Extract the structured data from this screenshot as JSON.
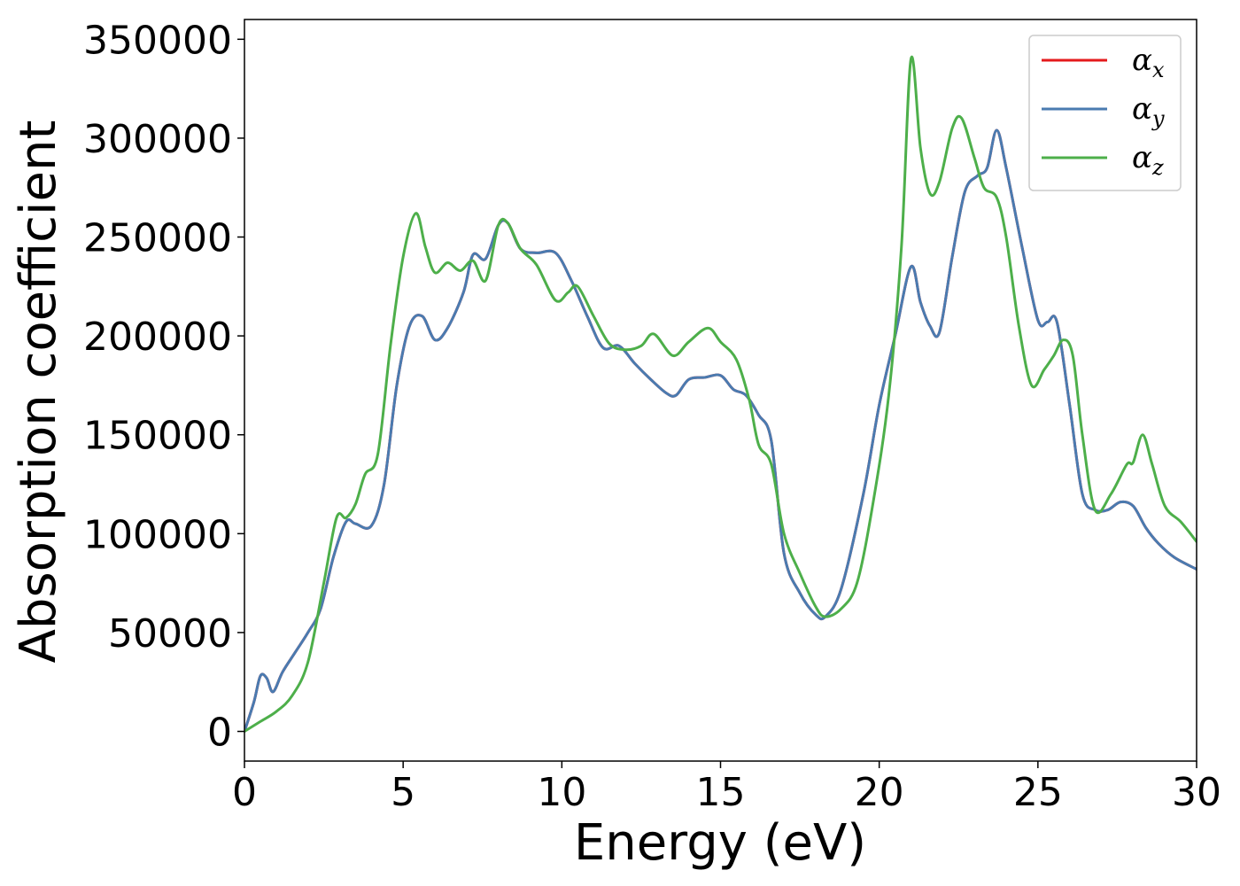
{
  "chart_data": {
    "type": "line",
    "title": "",
    "xlabel": "Energy (eV)",
    "ylabel": "Absorption coefficient",
    "xlim": [
      0,
      30
    ],
    "ylim": [
      -15000,
      360000
    ],
    "xticks": [
      0,
      5,
      10,
      15,
      20,
      25,
      30
    ],
    "yticks": [
      0,
      50000,
      100000,
      150000,
      200000,
      250000,
      300000,
      350000
    ],
    "grid": false,
    "legend_position": "top-right",
    "series": [
      {
        "name": "αx",
        "symbol": "α",
        "subscript": "x",
        "color": "#e41a1c",
        "x": [
          0,
          0.3,
          0.5,
          0.7,
          0.9,
          1.2,
          1.6,
          2.0,
          2.4,
          2.8,
          3.2,
          3.5,
          4.0,
          4.4,
          4.8,
          5.2,
          5.6,
          6.0,
          6.4,
          6.9,
          7.2,
          7.6,
          8.0,
          8.3,
          8.7,
          9.2,
          9.8,
          10.3,
          10.8,
          11.3,
          11.8,
          12.3,
          12.8,
          13.3,
          13.6,
          14.0,
          14.5,
          15.0,
          15.4,
          15.8,
          16.2,
          16.6,
          17.0,
          17.5,
          18.0,
          18.3,
          18.8,
          19.5,
          20.0,
          20.5,
          21.0,
          21.3,
          21.6,
          21.9,
          22.3,
          22.7,
          23.1,
          23.4,
          23.7,
          24.0,
          24.5,
          25.0,
          25.3,
          25.6,
          26.0,
          26.4,
          26.8,
          27.2,
          27.6,
          28.0,
          28.4,
          28.8,
          29.3,
          30.0
        ],
        "values": [
          0,
          15000,
          28000,
          27000,
          20000,
          30000,
          40000,
          50000,
          62000,
          88000,
          106000,
          105000,
          104000,
          125000,
          175000,
          205000,
          210000,
          198000,
          204000,
          222000,
          241000,
          239000,
          256000,
          257000,
          244000,
          242000,
          242000,
          228000,
          210000,
          194000,
          195000,
          186000,
          178000,
          171000,
          170000,
          178000,
          179000,
          180000,
          173000,
          170000,
          160000,
          147000,
          90000,
          70000,
          59000,
          58000,
          72000,
          120000,
          165000,
          200000,
          235000,
          217000,
          205000,
          202000,
          240000,
          273000,
          281000,
          285000,
          304000,
          285000,
          245000,
          208000,
          207000,
          207000,
          165000,
          120000,
          112000,
          112000,
          116000,
          114000,
          103000,
          95000,
          88000,
          82000
        ]
      },
      {
        "name": "αy",
        "symbol": "α",
        "subscript": "y",
        "color": "#4a7bb0",
        "x": [
          0,
          0.3,
          0.5,
          0.7,
          0.9,
          1.2,
          1.6,
          2.0,
          2.4,
          2.8,
          3.2,
          3.5,
          4.0,
          4.4,
          4.8,
          5.2,
          5.6,
          6.0,
          6.4,
          6.9,
          7.2,
          7.6,
          8.0,
          8.3,
          8.7,
          9.2,
          9.8,
          10.3,
          10.8,
          11.3,
          11.8,
          12.3,
          12.8,
          13.3,
          13.6,
          14.0,
          14.5,
          15.0,
          15.4,
          15.8,
          16.2,
          16.6,
          17.0,
          17.5,
          18.0,
          18.3,
          18.8,
          19.5,
          20.0,
          20.5,
          21.0,
          21.3,
          21.6,
          21.9,
          22.3,
          22.7,
          23.1,
          23.4,
          23.7,
          24.0,
          24.5,
          25.0,
          25.3,
          25.6,
          26.0,
          26.4,
          26.8,
          27.2,
          27.6,
          28.0,
          28.4,
          28.8,
          29.3,
          30.0
        ],
        "values": [
          0,
          15000,
          28000,
          27000,
          20000,
          30000,
          40000,
          50000,
          62000,
          88000,
          106000,
          105000,
          104000,
          125000,
          175000,
          205000,
          210000,
          198000,
          204000,
          222000,
          241000,
          239000,
          256000,
          257000,
          244000,
          242000,
          242000,
          228000,
          210000,
          194000,
          195000,
          186000,
          178000,
          171000,
          170000,
          178000,
          179000,
          180000,
          173000,
          170000,
          160000,
          147000,
          90000,
          70000,
          59000,
          58000,
          72000,
          120000,
          165000,
          200000,
          235000,
          217000,
          205000,
          202000,
          240000,
          273000,
          281000,
          285000,
          304000,
          285000,
          245000,
          208000,
          207000,
          207000,
          165000,
          120000,
          112000,
          112000,
          116000,
          114000,
          103000,
          95000,
          88000,
          82000
        ]
      },
      {
        "name": "αz",
        "symbol": "α",
        "subscript": "z",
        "color": "#4daf4a",
        "x": [
          0,
          0.5,
          1.0,
          1.5,
          2.0,
          2.5,
          2.9,
          3.2,
          3.5,
          3.8,
          4.2,
          4.6,
          5.0,
          5.4,
          5.7,
          6.0,
          6.4,
          6.8,
          7.2,
          7.6,
          8.0,
          8.3,
          8.7,
          9.2,
          9.8,
          10.2,
          10.5,
          11.0,
          11.5,
          12.0,
          12.5,
          12.9,
          13.5,
          14.0,
          14.6,
          15.0,
          15.5,
          15.9,
          16.2,
          16.6,
          17.0,
          17.5,
          18.0,
          18.3,
          18.8,
          19.3,
          19.8,
          20.3,
          20.7,
          21.0,
          21.3,
          21.6,
          21.9,
          22.3,
          22.6,
          23.0,
          23.3,
          23.7,
          24.0,
          24.4,
          24.8,
          25.2,
          25.5,
          25.8,
          26.1,
          26.4,
          26.8,
          27.3,
          27.8,
          28.0,
          28.3,
          28.6,
          29.0,
          29.5,
          30.0
        ],
        "values": [
          0,
          5000,
          10000,
          18000,
          35000,
          75000,
          108000,
          108000,
          115000,
          130000,
          140000,
          195000,
          240000,
          262000,
          245000,
          232000,
          237000,
          233000,
          238000,
          228000,
          256000,
          257000,
          244000,
          236000,
          218000,
          222000,
          225000,
          210000,
          196000,
          193000,
          195000,
          201000,
          190000,
          197000,
          204000,
          197000,
          188000,
          168000,
          145000,
          135000,
          100000,
          80000,
          63000,
          58000,
          62000,
          75000,
          115000,
          170000,
          245000,
          340000,
          295000,
          272000,
          278000,
          305000,
          310000,
          290000,
          275000,
          270000,
          250000,
          205000,
          175000,
          183000,
          190000,
          198000,
          190000,
          150000,
          112000,
          120000,
          135000,
          136000,
          150000,
          135000,
          114000,
          106000,
          96000
        ]
      }
    ]
  }
}
